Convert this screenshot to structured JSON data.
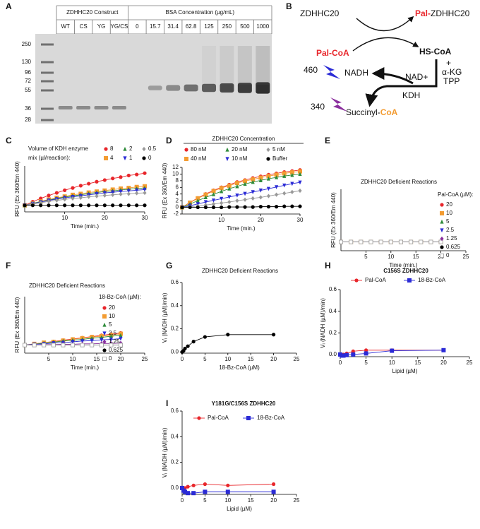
{
  "gel": {
    "panel": "A",
    "header": {
      "construct": "ZDHHC20 Construct",
      "bsa": "BSA Concentration (µg/mL)"
    },
    "construct_lanes": [
      "WT",
      "CS",
      "YG",
      "YG/CS"
    ],
    "bsa_lanes": [
      0,
      15.7,
      31.4,
      62.8,
      125,
      250,
      500,
      1000
    ],
    "markers": [
      250,
      130,
      96,
      72,
      55,
      36,
      28
    ]
  },
  "diagram": {
    "panel": "B",
    "enzyme": "ZDHHC20",
    "product_prefix": "Pal-",
    "product": "ZDHHC20",
    "substrate_prefix": "Pal-",
    "substrate": "CoA",
    "released": "HS-CoA",
    "plus": "+",
    "cofactor1": "α-KG",
    "cofactor2": "TPP",
    "nad": "NAD+",
    "kdh": "KDH",
    "nadh": "NADH",
    "em": "460",
    "ex": "340",
    "final_prefix": "Succinyl-",
    "final": "CoA"
  },
  "chart_data": [
    {
      "panel": "C",
      "type": "line",
      "legend_title": [
        "Volume of KDH enzyme",
        "mix (µl/reaction):"
      ],
      "xlabel": "Time (min.)",
      "ylabel": "RFU (Ex 360/Em 440)",
      "xlim": [
        0,
        30
      ],
      "ylim": [
        -2,
        12
      ],
      "xticks": [
        10,
        20,
        30
      ],
      "x": [
        0,
        2,
        4,
        6,
        8,
        10,
        12,
        14,
        16,
        18,
        20,
        22,
        24,
        26,
        28,
        30
      ],
      "series": [
        {
          "name": "8",
          "color": "#e8262b",
          "marker": "circle",
          "values": [
            0,
            1.1,
            2.1,
            3.0,
            3.8,
            4.6,
            5.3,
            6.0,
            6.6,
            7.2,
            7.7,
            8.2,
            8.6,
            9.1,
            9.4,
            9.8
          ]
        },
        {
          "name": "4",
          "color": "#f39c32",
          "marker": "square",
          "values": [
            0,
            0.6,
            1.2,
            1.8,
            2.3,
            2.7,
            3.2,
            3.5,
            3.9,
            4.2,
            4.5,
            4.8,
            5.1,
            5.3,
            5.6,
            5.8
          ]
        },
        {
          "name": "2",
          "color": "#2e8b3a",
          "marker": "triangle",
          "values": [
            0,
            0.6,
            1.1,
            1.6,
            2.1,
            2.5,
            2.9,
            3.2,
            3.6,
            3.9,
            4.2,
            4.4,
            4.7,
            4.9,
            5.1,
            5.3
          ]
        },
        {
          "name": "1",
          "color": "#2b2bd6",
          "marker": "triangle-down",
          "values": [
            0,
            0.5,
            1.0,
            1.5,
            1.9,
            2.3,
            2.6,
            2.9,
            3.2,
            3.5,
            3.8,
            4.0,
            4.2,
            4.4,
            4.6,
            4.8
          ]
        },
        {
          "name": "0.5",
          "color": "#999999",
          "marker": "diamond",
          "values": [
            0,
            0.4,
            0.8,
            1.2,
            1.5,
            1.8,
            2.1,
            2.3,
            2.6,
            2.8,
            3.0,
            3.2,
            3.4,
            3.5,
            3.7,
            3.8
          ]
        },
        {
          "name": "0",
          "color": "#000000",
          "marker": "circle",
          "values": [
            0,
            0,
            0,
            0,
            0,
            0,
            0,
            0,
            0,
            0,
            0,
            0,
            0,
            0,
            0,
            0
          ]
        }
      ]
    },
    {
      "panel": "D",
      "type": "line",
      "legend_title": "ZDHHC20 Concentration",
      "xlabel": "Time (min.)",
      "ylabel": "RFU (Ex 360/Em 440)",
      "xlim": [
        0,
        30
      ],
      "ylim": [
        -2,
        12
      ],
      "xticks": [
        10,
        20,
        30
      ],
      "yticks": [
        -2,
        0,
        2,
        4,
        6,
        8,
        10,
        12
      ],
      "x": [
        0,
        2,
        4,
        6,
        8,
        10,
        12,
        14,
        16,
        18,
        20,
        22,
        24,
        26,
        28,
        30
      ],
      "series": [
        {
          "name": "80 nM",
          "color": "#e8262b",
          "marker": "circle",
          "values": [
            0,
            1.5,
            2.8,
            4.0,
            5.1,
            6.0,
            6.8,
            7.6,
            8.2,
            8.8,
            9.3,
            9.8,
            10.2,
            10.6,
            10.9,
            11.2
          ]
        },
        {
          "name": "40 nM",
          "color": "#f39c32",
          "marker": "square",
          "values": [
            0,
            1.4,
            2.7,
            3.8,
            4.9,
            5.8,
            6.5,
            7.3,
            7.9,
            8.4,
            8.9,
            9.4,
            9.8,
            10.2,
            10.5,
            10.8
          ]
        },
        {
          "name": "20 nM",
          "color": "#2e8b3a",
          "marker": "triangle",
          "values": [
            0,
            1.0,
            2.0,
            3.0,
            3.9,
            4.8,
            5.6,
            6.3,
            7.0,
            7.6,
            8.1,
            8.6,
            9.0,
            9.4,
            9.7,
            10.0
          ]
        },
        {
          "name": "10 nM",
          "color": "#2b2bd6",
          "marker": "triangle-down",
          "values": [
            0,
            0.5,
            1.0,
            1.6,
            2.1,
            2.6,
            3.1,
            3.6,
            4.1,
            4.6,
            5.1,
            5.6,
            6.1,
            6.6,
            7.1,
            7.5
          ]
        },
        {
          "name": "5 nM",
          "color": "#999999",
          "marker": "diamond",
          "values": [
            0,
            0.2,
            0.4,
            0.7,
            1.0,
            1.3,
            1.6,
            2.0,
            2.3,
            2.7,
            3.0,
            3.4,
            3.8,
            4.2,
            4.6,
            5.0
          ]
        },
        {
          "name": "Buffer",
          "color": "#000000",
          "marker": "circle",
          "values": [
            0,
            0,
            0,
            0,
            0,
            0,
            0.1,
            0.1,
            0.1,
            0.1,
            0.2,
            0.2,
            0.2,
            0.3,
            0.3,
            0.3
          ]
        }
      ]
    },
    {
      "panel": "E",
      "type": "line",
      "title": "ZDHHC20 Deficient Reactions",
      "legend_title": "Pal-CoA (µM):",
      "xlabel": "Time (min.)",
      "ylabel": "RFU (Ex 360/Em 440)",
      "xlim": [
        0,
        25
      ],
      "ylim": [
        -2,
        12
      ],
      "xticks": [
        5,
        10,
        15,
        20,
        25
      ],
      "x": [
        0,
        2,
        4,
        6,
        8,
        10,
        12,
        14,
        16,
        18,
        20
      ],
      "series": [
        {
          "name": "20",
          "color": "#e8262b",
          "marker": "circle",
          "values": [
            0,
            0,
            0,
            0,
            0,
            0,
            0,
            0,
            0,
            0,
            0
          ]
        },
        {
          "name": "10",
          "color": "#f39c32",
          "marker": "square",
          "values": [
            0,
            0,
            0,
            0,
            0,
            0,
            0,
            0,
            0,
            0,
            0
          ]
        },
        {
          "name": "5",
          "color": "#2e8b3a",
          "marker": "triangle",
          "values": [
            0,
            0,
            0,
            0,
            0,
            0,
            0,
            0,
            0,
            0,
            0
          ]
        },
        {
          "name": "2.5",
          "color": "#2b2bd6",
          "marker": "triangle-down",
          "values": [
            0,
            0,
            0,
            0,
            0,
            0,
            0,
            0,
            0,
            0,
            0
          ]
        },
        {
          "name": "1.25",
          "color": "#8b2f9e",
          "marker": "diamond",
          "values": [
            0,
            0,
            0,
            0,
            0,
            0,
            0,
            0,
            0,
            0,
            0
          ]
        },
        {
          "name": "0.625",
          "color": "#000000",
          "marker": "circle",
          "values": [
            0,
            0,
            0,
            0,
            0,
            0,
            0,
            0,
            0,
            0,
            0
          ]
        },
        {
          "name": "0",
          "color": "#999999",
          "marker": "open-square",
          "values": [
            0,
            0,
            0,
            0,
            0,
            0,
            0,
            0,
            0,
            0,
            0
          ]
        }
      ]
    },
    {
      "panel": "F",
      "type": "line",
      "title": "ZDHHC20 Deficient Reactions",
      "legend_title": "18-Bz-CoA (µM):",
      "xlabel": "Time (min.)",
      "ylabel": "RFU (Ex 360/Em 440)",
      "xlim": [
        0,
        25
      ],
      "ylim": [
        -2,
        12
      ],
      "xticks": [
        5,
        10,
        15,
        20,
        25
      ],
      "x": [
        0,
        2,
        4,
        6,
        8,
        10,
        12,
        14,
        16,
        18,
        20
      ],
      "series": [
        {
          "name": "20",
          "color": "#e8262b",
          "marker": "circle",
          "values": [
            0,
            0.3,
            0.6,
            0.9,
            1.2,
            1.5,
            1.8,
            2.1,
            2.4,
            2.7,
            3.0
          ]
        },
        {
          "name": "10",
          "color": "#f39c32",
          "marker": "square",
          "values": [
            0,
            0.3,
            0.6,
            0.8,
            1.1,
            1.4,
            1.7,
            2.0,
            2.2,
            2.5,
            2.8
          ]
        },
        {
          "name": "5",
          "color": "#2e8b3a",
          "marker": "triangle",
          "values": [
            0,
            0.2,
            0.5,
            0.7,
            1.0,
            1.2,
            1.4,
            1.7,
            1.9,
            2.2,
            2.4
          ]
        },
        {
          "name": "2.5",
          "color": "#2b2bd6",
          "marker": "triangle-down",
          "values": [
            0,
            0.2,
            0.3,
            0.5,
            0.6,
            0.8,
            1.0,
            1.1,
            1.3,
            1.4,
            1.6
          ]
        },
        {
          "name": "1.25",
          "color": "#8b2f9e",
          "marker": "diamond",
          "values": [
            0,
            0,
            0.1,
            0.1,
            0.2,
            0.2,
            0.3,
            0.3,
            0.4,
            0.4,
            0.5
          ]
        },
        {
          "name": "0.625",
          "color": "#000000",
          "marker": "circle",
          "values": [
            0,
            0,
            0,
            0,
            0,
            0,
            0,
            0,
            0,
            0,
            0
          ]
        },
        {
          "name": "0",
          "color": "#999999",
          "marker": "open-square",
          "values": [
            0,
            0,
            0,
            0,
            0,
            0,
            0,
            0,
            0,
            0,
            0
          ]
        }
      ]
    },
    {
      "panel": "G",
      "type": "line",
      "title": "ZDHHC20 Deficient Reactions",
      "xlabel": "18-Bz-CoA (µM)",
      "ylabel": "Vᵢ (NADH (µM)/min)",
      "xlim": [
        0,
        25
      ],
      "ylim": [
        -0.01,
        0.6
      ],
      "xticks": [
        0,
        5,
        10,
        15,
        20,
        25
      ],
      "yticks": [
        {
          "value": 0,
          "label": "0.0"
        },
        {
          "value": 0.2,
          "label": "0.2"
        },
        {
          "value": 0.4,
          "label": "0.4"
        },
        {
          "value": 0.6,
          "label": "0.6"
        }
      ],
      "x": [
        0,
        0.3125,
        0.625,
        1.25,
        2.5,
        5,
        10,
        20
      ],
      "series": [
        {
          "color": "#000000",
          "marker": "circle",
          "values": [
            0,
            0.01,
            0.03,
            0.05,
            0.09,
            0.13,
            0.15,
            0.15
          ]
        }
      ]
    },
    {
      "panel": "H",
      "type": "line",
      "title": "C156S ZDHHC20",
      "xlabel": "Lipid (µM)",
      "ylabel": "Vᵢ (NADH (µM)/min)",
      "xlim": [
        0,
        25
      ],
      "ylim": [
        -0.02,
        0.6
      ],
      "xticks": [
        0,
        5,
        10,
        15,
        20,
        25
      ],
      "yticks": [
        {
          "value": 0,
          "label": "0.0"
        },
        {
          "value": 0.2,
          "label": "0.2"
        },
        {
          "value": 0.4,
          "label": "0.4"
        },
        {
          "value": 0.6,
          "label": "0.6"
        }
      ],
      "x": [
        0,
        0.3125,
        0.625,
        1.25,
        2.5,
        5,
        10,
        20
      ],
      "series": [
        {
          "name": "Pal-CoA",
          "color": "#e8262b",
          "marker": "circle",
          "values": [
            0,
            -0.005,
            0,
            0.01,
            0.03,
            0.04,
            0.04,
            0.04
          ]
        },
        {
          "name": "18-Bz-CoA",
          "color": "#2b2bd6",
          "marker": "square",
          "values": [
            0,
            -0.01,
            -0.01,
            -0.005,
            0,
            0.01,
            0.035,
            0.04
          ]
        }
      ]
    },
    {
      "panel": "I",
      "type": "line",
      "title": "Y181G/C156S ZDHHC20",
      "xlabel": "Lipid (µM)",
      "ylabel": "Vᵢ (NADH (µM)/min)",
      "xlim": [
        0,
        25
      ],
      "ylim": [
        -0.05,
        0.6
      ],
      "xticks": [
        0,
        5,
        10,
        15,
        20,
        25
      ],
      "yticks": [
        {
          "value": 0,
          "label": "0.0"
        },
        {
          "value": 0.2,
          "label": "0.2"
        },
        {
          "value": 0.4,
          "label": "0.4"
        },
        {
          "value": 0.6,
          "label": "0.6"
        }
      ],
      "x": [
        0,
        0.3125,
        0.625,
        1.25,
        2.5,
        5,
        10,
        20
      ],
      "series": [
        {
          "name": "Pal-CoA",
          "color": "#e8262b",
          "marker": "circle",
          "values": [
            0,
            -0.01,
            0,
            0.01,
            0.02,
            0.03,
            0.02,
            0.03
          ]
        },
        {
          "name": "18-Bz-CoA",
          "color": "#2b2bd6",
          "marker": "square",
          "values": [
            0,
            -0.02,
            -0.03,
            -0.04,
            -0.04,
            -0.03,
            -0.03,
            -0.03
          ]
        }
      ]
    }
  ]
}
